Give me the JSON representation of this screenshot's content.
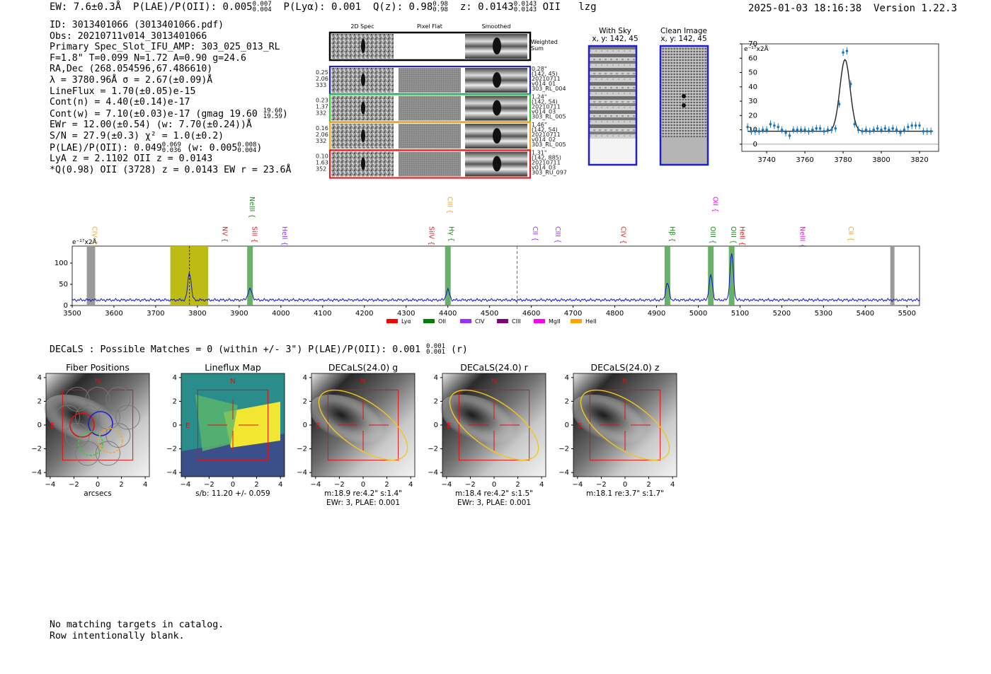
{
  "header": {
    "ew": "EW: 7.6±0.3Å",
    "plae_label": "P(LAE)/P(OII): 0.005",
    "plae_hi": "0.007",
    "plae_lo": "0.004",
    "plya": "P(Lyα): 0.001",
    "qz": "Q(z): 0.98",
    "qz_hi": "0.98",
    "qz_lo": "0.98",
    "z": "z: 0.0143",
    "z_hi": "0.0143",
    "z_lo": "0.0143",
    "line": "OII",
    "tag": "lzg",
    "timestamp": "2025-01-03 18:16:38",
    "version": "Version 1.22.3"
  },
  "info": {
    "id": "ID: 3013401066 (3013401066.pdf)",
    "obs": "Obs: 20210711v014_3013401066",
    "primary": "Primary Spec_Slot_IFU_AMP: 303_025_013_RL",
    "fit": "F=1.8\"  T=0.099  N=1.72  A=0.90  g=24.6",
    "radec": "RA,Dec (268.054596,67.486610)",
    "lambda": "λ = 3780.96Å  σ = 2.67(±0.09)Å",
    "lineflux": "LineFlux = 1.70(±0.05)e-15",
    "contn": "Cont(n) = 4.40(±0.14)e-17",
    "contw": "Cont(w) = 7.10(±0.03)e-17 (gmag 19.60",
    "contw_hi": "19.60",
    "contw_lo": "19.59",
    "ewr": "EWr = 12.00(±0.54) (w: 7.70(±0.24))Å",
    "sn": "S/N = 27.9(±0.3)  χ² = 1.0(±0.2)",
    "plae": "P(LAE)/P(OII): 0.049",
    "plae_hi": "0.069",
    "plae_lo": "0.036",
    "plae_w": "(w: 0.005",
    "plae_w_hi": "0.008",
    "plae_w_lo": "0.004",
    "lya": "LyA z = 2.1102  OII z = 0.0143",
    "q": "*Q(0.98) OII (3728) z = 0.0143  EW r = 23.6Å"
  },
  "cutouts": {
    "col_headers": [
      "2D Spec",
      "Pixel Flat",
      "Smoothed"
    ],
    "weighted_label": "Weighted Sum",
    "rows": [
      {
        "left": [
          "0.25",
          "2.06",
          "333"
        ],
        "right": [
          "0.28\"",
          "(142, 45)",
          "20210711",
          "v014_01",
          "303_RL_004"
        ],
        "color": "#1f1fcc"
      },
      {
        "left": [
          "0.23",
          "1.37",
          "332"
        ],
        "right": [
          "1.24\"",
          "(142, 54)",
          "20210711",
          "v014_03",
          "303_RL_005"
        ],
        "color": "#33cc33"
      },
      {
        "left": [
          "0.16",
          "2.06",
          "332"
        ],
        "right": [
          "1.46\"",
          "(142, 54)",
          "20210711",
          "v014_02",
          "303_RL_005"
        ],
        "color": "#f5a623"
      },
      {
        "left": [
          "0.10",
          "1.63",
          "352"
        ],
        "right": [
          "1.31\"",
          "(142, 885)",
          "20210711",
          "v014_03",
          "303_RU_097"
        ],
        "color": "#e02020"
      }
    ]
  },
  "sky": {
    "with_sky_title": "With Sky",
    "with_sky_sub": "x, y: 142, 45",
    "clean_title": "Clean Image",
    "clean_sub": "x, y: 142, 45"
  },
  "chart_data": [
    {
      "type": "scatter",
      "title": "",
      "ylabel": "e⁻¹⁷x2Å",
      "xlim": [
        3727,
        3830
      ],
      "ylim": [
        -5,
        70
      ],
      "xticks": [
        "3740",
        "3760",
        "3780",
        "3800",
        "3820"
      ],
      "yticks": [
        "0",
        "10",
        "20",
        "30",
        "40",
        "50",
        "60",
        "70"
      ],
      "x": [
        3730,
        3732,
        3734,
        3736,
        3738,
        3740,
        3742,
        3744,
        3746,
        3748,
        3750,
        3752,
        3754,
        3756,
        3758,
        3760,
        3762,
        3764,
        3766,
        3768,
        3770,
        3772,
        3774,
        3776,
        3778,
        3780,
        3782,
        3784,
        3786,
        3788,
        3790,
        3792,
        3794,
        3796,
        3798,
        3800,
        3802,
        3804,
        3806,
        3808,
        3810,
        3812,
        3814,
        3816,
        3818,
        3820,
        3822,
        3824,
        3826
      ],
      "y": [
        12,
        9,
        9,
        9,
        10,
        10,
        14,
        13,
        12,
        10,
        8,
        6,
        10,
        10,
        10,
        10,
        9,
        10,
        11,
        11,
        9,
        10,
        10,
        11,
        28,
        64,
        65,
        42,
        14,
        10,
        9,
        10,
        9,
        10,
        11,
        10,
        11,
        10,
        11,
        10,
        8,
        10,
        12,
        13,
        13,
        13,
        9,
        9,
        9
      ],
      "fit_center": 3781.0,
      "fit_sigma": 2.67,
      "fit_amp": 50,
      "fit_base": 9
    },
    {
      "type": "line",
      "ylabel": "e⁻¹⁷x2Å",
      "xlim": [
        3500,
        5530
      ],
      "ylim": [
        0,
        140
      ],
      "xticks": [
        "3500",
        "3600",
        "3700",
        "3800",
        "3900",
        "4000",
        "4100",
        "4200",
        "4300",
        "4400",
        "4500",
        "4600",
        "4700",
        "4800",
        "4900",
        "5000",
        "5100",
        "5200",
        "5300",
        "5400",
        "5500"
      ],
      "yticks": [
        "0",
        "50",
        "100"
      ],
      "peaks": [
        {
          "x": 3781,
          "height": 65,
          "width": 4
        },
        {
          "x": 3926,
          "height": 25,
          "width": 5
        },
        {
          "x": 4400,
          "height": 24,
          "width": 4
        },
        {
          "x": 4926,
          "height": 40,
          "width": 4
        },
        {
          "x": 5030,
          "height": 58,
          "width": 4
        },
        {
          "x": 5080,
          "height": 110,
          "width": 4
        }
      ],
      "baseline": 13,
      "lines": [
        {
          "label": "CIV",
          "x": 3548,
          "color": "#f5a623"
        },
        {
          "label": "NV",
          "x": 3860,
          "color": "#e02020"
        },
        {
          "label": "SiII",
          "x": 3932,
          "color": "#e02020"
        },
        {
          "label": "NeIII",
          "x": 3926,
          "color": "#1a8f1a",
          "high": true
        },
        {
          "label": "HeII",
          "x": 4004,
          "color": "#9b30ff"
        },
        {
          "label": "SiIV",
          "x": 4356,
          "color": "#e02020"
        },
        {
          "label": "CIII",
          "x": 4400,
          "color": "#f5a623",
          "high": true
        },
        {
          "label": "Hγ",
          "x": 4403,
          "color": "#1a8f1a"
        },
        {
          "label": "CII",
          "x": 4604,
          "color": "#9b30ff"
        },
        {
          "label": "CIII",
          "x": 4658,
          "color": "#9b30ff"
        },
        {
          "label": "CIV",
          "x": 4815,
          "color": "#e02020"
        },
        {
          "label": "Hβ",
          "x": 4932,
          "color": "#1a8f1a"
        },
        {
          "label": "OII",
          "x": 5036,
          "color": "#ff00ff",
          "high": true
        },
        {
          "label": "OIII",
          "x": 5030,
          "color": "#1a8f1a"
        },
        {
          "label": "OIII",
          "x": 5079,
          "color": "#1a8f1a"
        },
        {
          "label": "HeII",
          "x": 5100,
          "color": "#e02020"
        },
        {
          "label": "NeIII",
          "x": 5244,
          "color": "#ff00ff"
        },
        {
          "label": "CII",
          "x": 5360,
          "color": "#f5a623"
        }
      ],
      "legend": [
        {
          "label": "Lyα",
          "color": "#ff0000"
        },
        {
          "label": "OII",
          "color": "#008000"
        },
        {
          "label": "CIV",
          "color": "#9b30ff"
        },
        {
          "label": "CIII",
          "color": "#800080"
        },
        {
          "label": "MgII",
          "color": "#ff00ff"
        },
        {
          "label": "HeII",
          "color": "#ffa500"
        }
      ]
    }
  ],
  "decals": {
    "title": "DECaLS : Possible Matches = 0 (within +/- 3\")  P(LAE)/P(OII): 0.001",
    "title_hi": "0.001",
    "title_lo": "0.001",
    "title_tail": "(r)",
    "panels": [
      {
        "title": "Fiber Positions",
        "caption1": "arcsecs",
        "caption2": ""
      },
      {
        "title": "Lineflux Map",
        "caption1": "s/b: 11.20 +/- 0.059",
        "caption2": ""
      },
      {
        "title": "DECaLS(24.0) g",
        "caption1": "m:18.9  re:4.2\"  s:1.4\"",
        "caption2": "EWr: 3, PLAE: 0.001"
      },
      {
        "title": "DECaLS(24.0) r",
        "caption1": "m:18.4  re:4.2\"  s:1.5\"",
        "caption2": "EWr: 3, PLAE: 0.001"
      },
      {
        "title": "DECaLS(24.0) z",
        "caption1": "m:18.1  re:3.7\"  s:1.7\"",
        "caption2": ""
      }
    ],
    "axis_ticks": [
      "−4",
      "−2",
      "0",
      "2",
      "4"
    ],
    "compass_n": "N",
    "compass_e": "E"
  },
  "footer": {
    "line1": "No matching targets in catalog.",
    "line2": "Row intentionally blank."
  }
}
